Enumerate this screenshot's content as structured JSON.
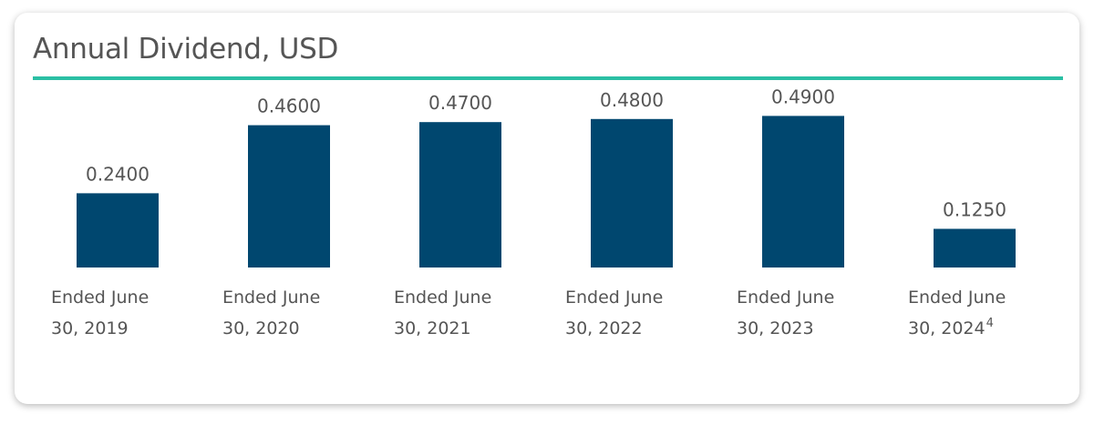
{
  "colors": {
    "bar": "#00476f",
    "accent_rule": "#2bbfa4",
    "text": "#555555"
  },
  "chart_data": {
    "type": "bar",
    "title": "Annual Dividend, USD",
    "xlabel": "",
    "ylabel": "",
    "ylim": [
      0,
      0.5
    ],
    "grid": false,
    "categories": [
      {
        "line1": "Ended June",
        "line2": "30, 2019",
        "footnote": ""
      },
      {
        "line1": "Ended June",
        "line2": "30, 2020",
        "footnote": ""
      },
      {
        "line1": "Ended June",
        "line2": "30, 2021",
        "footnote": ""
      },
      {
        "line1": "Ended June",
        "line2": "30, 2022",
        "footnote": ""
      },
      {
        "line1": "Ended June",
        "line2": "30, 2023",
        "footnote": ""
      },
      {
        "line1": "Ended June",
        "line2": "30, 2024",
        "footnote": "4"
      }
    ],
    "values": [
      0.24,
      0.46,
      0.47,
      0.48,
      0.49,
      0.125
    ],
    "value_labels": [
      "0.2400",
      "0.4600",
      "0.4700",
      "0.4800",
      "0.4900",
      "0.1250"
    ]
  }
}
